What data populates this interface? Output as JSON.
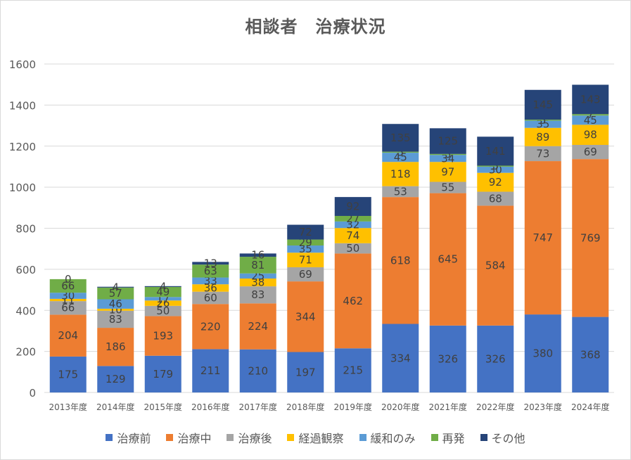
{
  "chart_data": {
    "type": "bar",
    "stacked": true,
    "title": "相談者　治療状況",
    "xlabel": "",
    "ylabel": "",
    "ylim": [
      0,
      1600
    ],
    "yticks": [
      0,
      200,
      400,
      600,
      800,
      1000,
      1200,
      1400,
      1600
    ],
    "grid": true,
    "legend_position": "bottom",
    "categories": [
      "2013年度",
      "2014年度",
      "2015年度",
      "2016年度",
      "2017年度",
      "2018年度",
      "2019年度",
      "2020年度",
      "2021年度",
      "2022年度",
      "2023年度",
      "2024年度"
    ],
    "series": [
      {
        "name": "治療前",
        "color": "#4472C4",
        "values": [
          175,
          129,
          179,
          211,
          210,
          197,
          215,
          334,
          326,
          326,
          380,
          368
        ]
      },
      {
        "name": "治療中",
        "color": "#ED7D31",
        "values": [
          204,
          186,
          193,
          220,
          224,
          344,
          462,
          618,
          645,
          584,
          747,
          769
        ]
      },
      {
        "name": "治療後",
        "color": "#A5A5A5",
        "values": [
          66,
          83,
          50,
          60,
          83,
          69,
          50,
          53,
          55,
          68,
          73,
          69
        ]
      },
      {
        "name": "経過観察",
        "color": "#FFC000",
        "values": [
          11,
          10,
          26,
          36,
          38,
          71,
          74,
          118,
          97,
          92,
          89,
          98
        ]
      },
      {
        "name": "緩和のみ",
        "color": "#5B9BD5",
        "values": [
          30,
          46,
          17,
          33,
          25,
          35,
          32,
          45,
          34,
          30,
          35,
          45
        ]
      },
      {
        "name": "再発",
        "color": "#70AD47",
        "values": [
          66,
          57,
          49,
          63,
          81,
          29,
          27,
          5,
          5,
          5,
          5,
          7
        ]
      },
      {
        "name": "その他",
        "color": "#264478",
        "values": [
          0,
          4,
          4,
          13,
          16,
          72,
          92,
          135,
          125,
          141,
          145,
          143
        ]
      }
    ]
  }
}
